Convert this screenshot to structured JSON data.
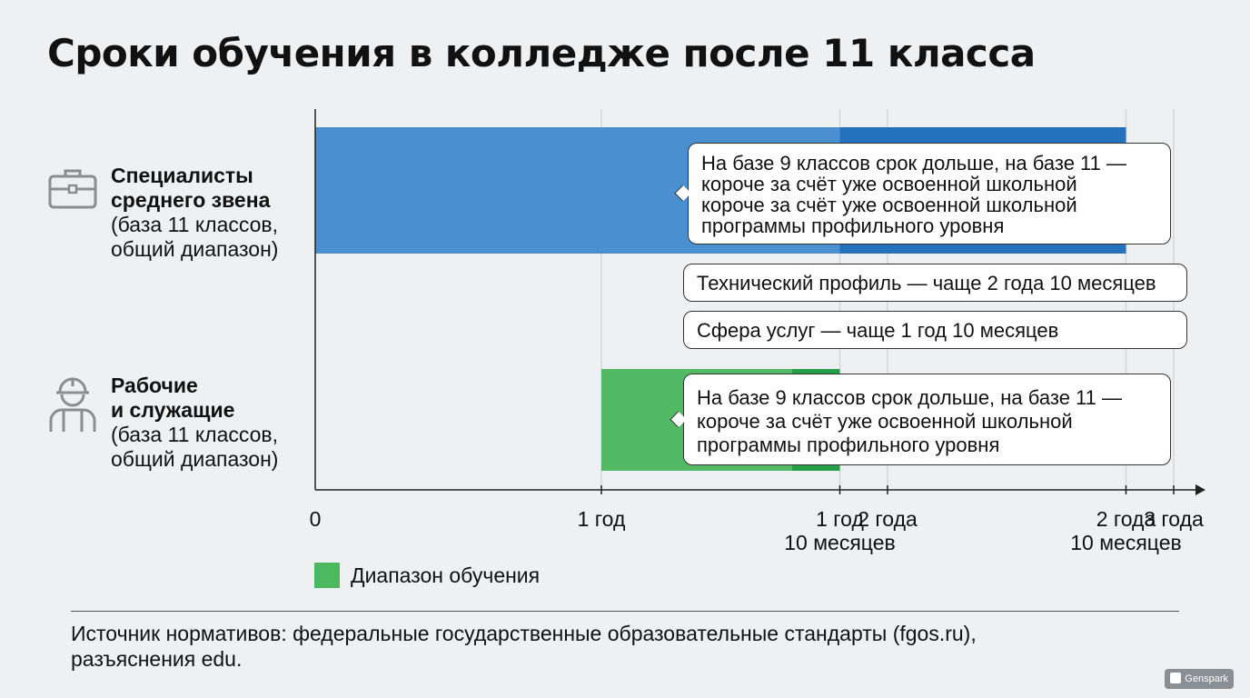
{
  "title": "Сроки обучения в колледже после 11 класса",
  "categories": [
    {
      "icon": "briefcase-icon",
      "name_lines": [
        "Специалисты",
        "среднего звена"
      ],
      "sub_lines": [
        "(база 11 классов,",
        "общий диапазон)"
      ]
    },
    {
      "icon": "worker-icon",
      "name_lines": [
        "Рабочие",
        "и служащие"
      ],
      "sub_lines": [
        "(база 11 классов,",
        "общий диапазон)"
      ]
    }
  ],
  "callouts": {
    "specialists_note": [
      "На базе 9 классов срок дольше, на базе 11 —",
      "короче за счёт уже освоенной школьной",
      "короче за счёт уже освоенной школьной",
      "программы профильного уровня"
    ],
    "technical": "Технический профиль — чаще 2 года 10 месяцев",
    "services": "Сфера услуг — чаще 1 год 10 месяцев",
    "workers_note": [
      "На базе 9 классов срок дольше, на базе 11 —",
      "короче за счёт уже освоенной школьной",
      "программы профильного уровня"
    ]
  },
  "legend": {
    "label": "Диапазон обучения"
  },
  "source": [
    "Источник нормативов: федеральные государственные образовательные стандарты (fgos.ru),",
    "разъяснения edu."
  ],
  "watermark": "Genspark",
  "colors": {
    "specialists_light": "#4a90d0",
    "specialists_dark": "#2471bd",
    "workers_light": "#52b964",
    "workers_dark": "#25a046",
    "legend": "#4cb860"
  },
  "chart_data": {
    "type": "bar",
    "orientation": "horizontal",
    "title": "Сроки обучения в колледже после 11 класса",
    "x_unit": "years",
    "xlim": [
      0,
      3
    ],
    "x_ticks": [
      {
        "value": 0,
        "label": [
          "0"
        ]
      },
      {
        "value": 1,
        "label": [
          "1 год"
        ]
      },
      {
        "value": 1.8333,
        "label": [
          "1 год",
          "10 месяцев"
        ]
      },
      {
        "value": 2,
        "label": [
          "2 года"
        ]
      },
      {
        "value": 2.8333,
        "label": [
          "2 года",
          "10 месяцев"
        ]
      },
      {
        "value": 3,
        "label": [
          "3 года"
        ]
      }
    ],
    "grid": true,
    "bars": [
      {
        "category": "Специалисты среднего звена",
        "start": 0,
        "end": 2.8333,
        "segments": [
          {
            "start": 0,
            "end": 1.8333,
            "shade": "light"
          },
          {
            "start": 1.8333,
            "end": 2.8333,
            "shade": "dark"
          }
        ]
      },
      {
        "category": "Рабочие и служащие",
        "start": 1,
        "end": 1.8333,
        "segments": [
          {
            "start": 1,
            "end": 1.6667,
            "shade": "light"
          },
          {
            "start": 1.6667,
            "end": 1.8333,
            "shade": "dark"
          }
        ]
      }
    ],
    "legend": [
      "Диапазон обучения"
    ],
    "legend_position": "bottom-left"
  }
}
